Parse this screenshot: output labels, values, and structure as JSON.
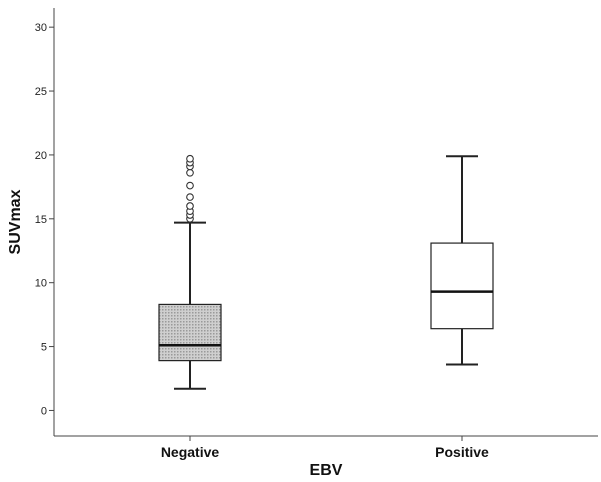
{
  "chart_data": {
    "type": "boxplot",
    "title": "",
    "xlabel": "EBV",
    "ylabel": "SUVmax",
    "ylim": [
      -2,
      31.5
    ],
    "yticks": [
      0,
      5,
      10,
      15,
      20,
      25,
      30
    ],
    "ytick_labels": [
      "0",
      "5",
      "10",
      "15",
      "20",
      "25",
      "30"
    ],
    "grid": false,
    "categories": [
      "Negative",
      "Positive"
    ],
    "boxes": [
      {
        "category": "Negative",
        "whisker_low": 1.7,
        "q1": 3.9,
        "median": 5.1,
        "q3": 8.3,
        "whisker_high": 14.7,
        "outliers": [
          15.0,
          15.3,
          15.6,
          16.0,
          16.7,
          17.6,
          18.6,
          19.1,
          19.4,
          19.7
        ],
        "fill": "#d9d9d9",
        "pattern": "dotted"
      },
      {
        "category": "Positive",
        "whisker_low": 3.6,
        "q1": 6.4,
        "median": 9.3,
        "q3": 13.1,
        "whisker_high": 19.9,
        "outliers": [],
        "fill": "#ffffff",
        "pattern": "none"
      }
    ]
  }
}
